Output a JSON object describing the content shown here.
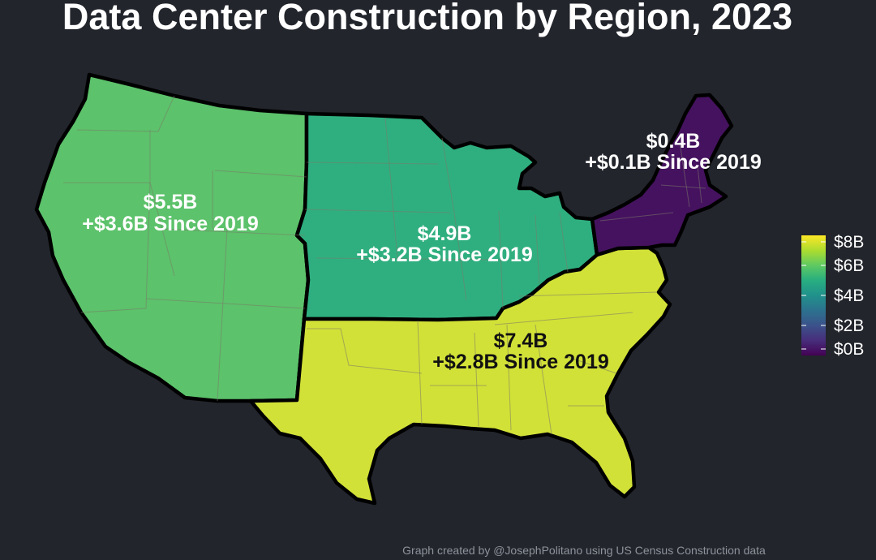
{
  "title": "Data Center Construction by Region, 2023",
  "caption": "Graph created by @JosephPolitano using US Census Construction data",
  "colors": {
    "background": "#22252c",
    "west": "#5cc26b",
    "midwest": "#2faf7f",
    "south": "#d2e137",
    "northeast": "#45125f",
    "border": "#000000"
  },
  "regions": {
    "west": {
      "name": "West",
      "value_label": "$5.5B",
      "change_label": "+$3.6B Since 2019",
      "value": 5.5,
      "change": 3.6
    },
    "midwest": {
      "name": "Midwest",
      "value_label": "$4.9B",
      "change_label": "+$3.2B Since 2019",
      "value": 4.9,
      "change": 3.2
    },
    "south": {
      "name": "South",
      "value_label": "$7.4B",
      "change_label": "+$2.8B Since 2019",
      "value": 7.4,
      "change": 2.8
    },
    "northeast": {
      "name": "Northeast",
      "value_label": "$0.4B",
      "change_label": "+$0.1B Since 2019",
      "value": 0.4,
      "change": 0.1
    }
  },
  "legend": {
    "scale": "viridis",
    "range": [
      0,
      8
    ],
    "ticks": [
      "$8B",
      "$6B",
      "$4B",
      "$2B",
      "$0B"
    ],
    "tick_values": [
      8,
      6,
      4,
      2,
      0
    ],
    "placement": "right"
  }
}
